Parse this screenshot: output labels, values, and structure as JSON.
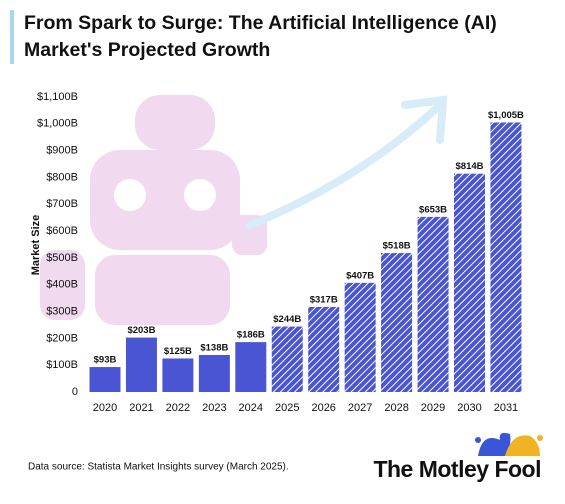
{
  "chart_data": {
    "type": "bar",
    "title": "From Spark to Surge: The Artificial Intelligence (AI) Market's Projected Growth",
    "y_label": "Market Size",
    "categories": [
      "2020",
      "2021",
      "2022",
      "2023",
      "2024",
      "2025",
      "2026",
      "2027",
      "2028",
      "2029",
      "2030",
      "2031"
    ],
    "values": [
      93,
      203,
      125,
      138,
      186,
      244,
      317,
      407,
      518,
      653,
      814,
      1005
    ],
    "value_labels": [
      "$93B",
      "$203B",
      "$125B",
      "$138B",
      "$186B",
      "$244B",
      "$317B",
      "$407B",
      "$518B",
      "$653B",
      "$814B",
      "$1,005B"
    ],
    "patterns": [
      "solid",
      "solid",
      "solid",
      "solid",
      "solid",
      "hatched",
      "hatched",
      "hatched",
      "hatched",
      "hatched",
      "hatched",
      "hatched"
    ],
    "color": "#4a55d4",
    "ylim": [
      0,
      1100
    ],
    "yticks": [
      0,
      {
        "value": 100,
        "label": "$100B"
      },
      {
        "value": 200,
        "label": "$200B"
      },
      {
        "value": 300,
        "label": "$300B"
      },
      {
        "value": 400,
        "label": "$400B"
      },
      {
        "value": 500,
        "label": "$500B"
      },
      {
        "value": 600,
        "label": "$600B"
      },
      {
        "value": 700,
        "label": "$700B"
      },
      {
        "value": 800,
        "label": "$800B"
      },
      {
        "value": 900,
        "label": "$900B"
      },
      {
        "value": 1000,
        "label": "$1,000B"
      },
      {
        "value": 1100,
        "label": "$1,100B"
      }
    ],
    "grid": false
  },
  "source": "Data source: Statista Market Insights survey (March 2025).",
  "brand": "The Motley Fool"
}
